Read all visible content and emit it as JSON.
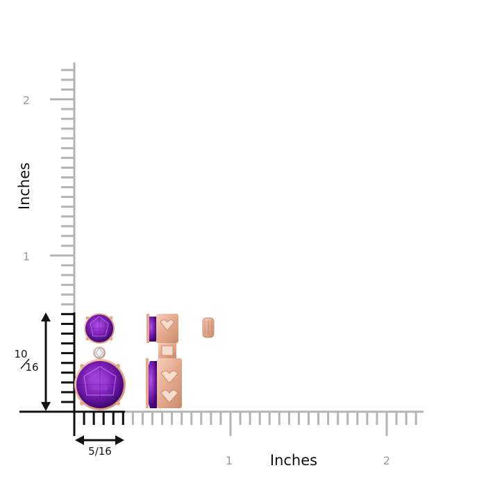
{
  "labels": {
    "y_axis_title": "Inches",
    "x_axis_title": "Inches",
    "y_tick_1": "1",
    "y_tick_2": "2",
    "x_tick_1": "1",
    "x_tick_2": "2",
    "height_measure_num": "10",
    "height_measure_den": "16",
    "width_measure": "5/16"
  },
  "colors": {
    "ruler_gray": "#b4b4b4",
    "ruler_black": "#111111",
    "amethyst": "#7a1fb5",
    "amethyst_dark": "#4a0a80",
    "rose_gold": "#e9b39a",
    "label_gray": "#9a9a9a"
  },
  "product": {
    "icon": "amethyst-drop-earrings"
  }
}
